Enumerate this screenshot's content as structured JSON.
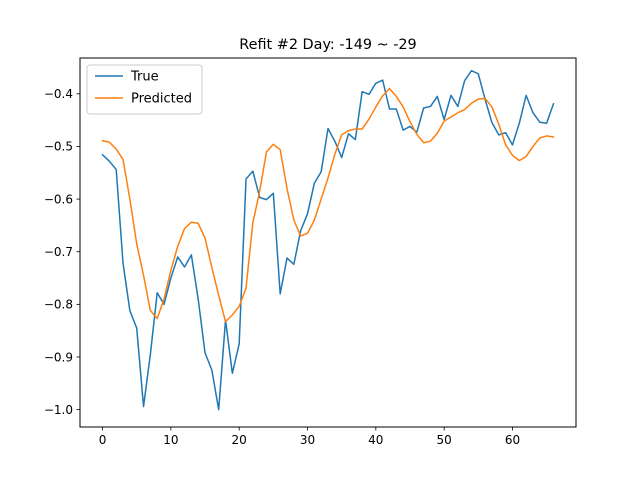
{
  "chart_data": {
    "type": "line",
    "title": "Refit #2 Day: -149 ~ -29",
    "xlabel": "",
    "ylabel": "",
    "xlim": [
      -3.3,
      69.3
    ],
    "ylim": [
      -1.033,
      -0.332
    ],
    "xticks": [
      0,
      10,
      20,
      30,
      40,
      50,
      60
    ],
    "yticks": [
      -1.0,
      -0.9,
      -0.8,
      -0.7,
      -0.6,
      -0.5,
      -0.4
    ],
    "ytick_labels": [
      "−1.0",
      "−0.9",
      "−0.8",
      "−0.7",
      "−0.6",
      "−0.5",
      "−0.4"
    ],
    "legend_position": "upper-left",
    "grid": false,
    "x": [
      0,
      1,
      2,
      3,
      4,
      5,
      6,
      7,
      8,
      9,
      10,
      11,
      12,
      13,
      14,
      15,
      16,
      17,
      18,
      19,
      20,
      21,
      22,
      23,
      24,
      25,
      26,
      27,
      28,
      29,
      30,
      31,
      32,
      33,
      34,
      35,
      36,
      37,
      38,
      39,
      40,
      41,
      42,
      43,
      44,
      45,
      46,
      47,
      48,
      49,
      50,
      51,
      52,
      53,
      54,
      55,
      56,
      57,
      58,
      59,
      60,
      61,
      62,
      63,
      64,
      65,
      66
    ],
    "series": [
      {
        "name": "True",
        "color": "#1f77b4",
        "values": [
          -0.516,
          -0.528,
          -0.544,
          -0.722,
          -0.812,
          -0.845,
          -0.994,
          -0.895,
          -0.778,
          -0.8,
          -0.75,
          -0.71,
          -0.729,
          -0.706,
          -0.79,
          -0.892,
          -0.925,
          -1.0,
          -0.83,
          -0.931,
          -0.875,
          -0.562,
          -0.547,
          -0.597,
          -0.601,
          -0.589,
          -0.78,
          -0.712,
          -0.724,
          -0.66,
          -0.628,
          -0.57,
          -0.548,
          -0.466,
          -0.49,
          -0.521,
          -0.476,
          -0.487,
          -0.396,
          -0.401,
          -0.38,
          -0.374,
          -0.429,
          -0.429,
          -0.469,
          -0.462,
          -0.473,
          -0.427,
          -0.424,
          -0.405,
          -0.449,
          -0.403,
          -0.424,
          -0.375,
          -0.356,
          -0.362,
          -0.411,
          -0.455,
          -0.478,
          -0.474,
          -0.497,
          -0.456,
          -0.403,
          -0.436,
          -0.454,
          -0.456,
          -0.419
        ]
      },
      {
        "name": "Predicted",
        "color": "#ff7f0e",
        "values": [
          -0.489,
          -0.492,
          -0.505,
          -0.525,
          -0.6,
          -0.685,
          -0.745,
          -0.812,
          -0.827,
          -0.79,
          -0.735,
          -0.69,
          -0.656,
          -0.644,
          -0.646,
          -0.674,
          -0.73,
          -0.783,
          -0.833,
          -0.82,
          -0.804,
          -0.769,
          -0.645,
          -0.585,
          -0.51,
          -0.496,
          -0.506,
          -0.58,
          -0.64,
          -0.67,
          -0.665,
          -0.64,
          -0.6,
          -0.56,
          -0.515,
          -0.478,
          -0.47,
          -0.467,
          -0.467,
          -0.448,
          -0.425,
          -0.404,
          -0.39,
          -0.405,
          -0.425,
          -0.453,
          -0.477,
          -0.493,
          -0.49,
          -0.475,
          -0.452,
          -0.444,
          -0.436,
          -0.43,
          -0.418,
          -0.41,
          -0.409,
          -0.425,
          -0.458,
          -0.497,
          -0.517,
          -0.527,
          -0.519,
          -0.5,
          -0.484,
          -0.48,
          -0.482
        ]
      }
    ]
  }
}
